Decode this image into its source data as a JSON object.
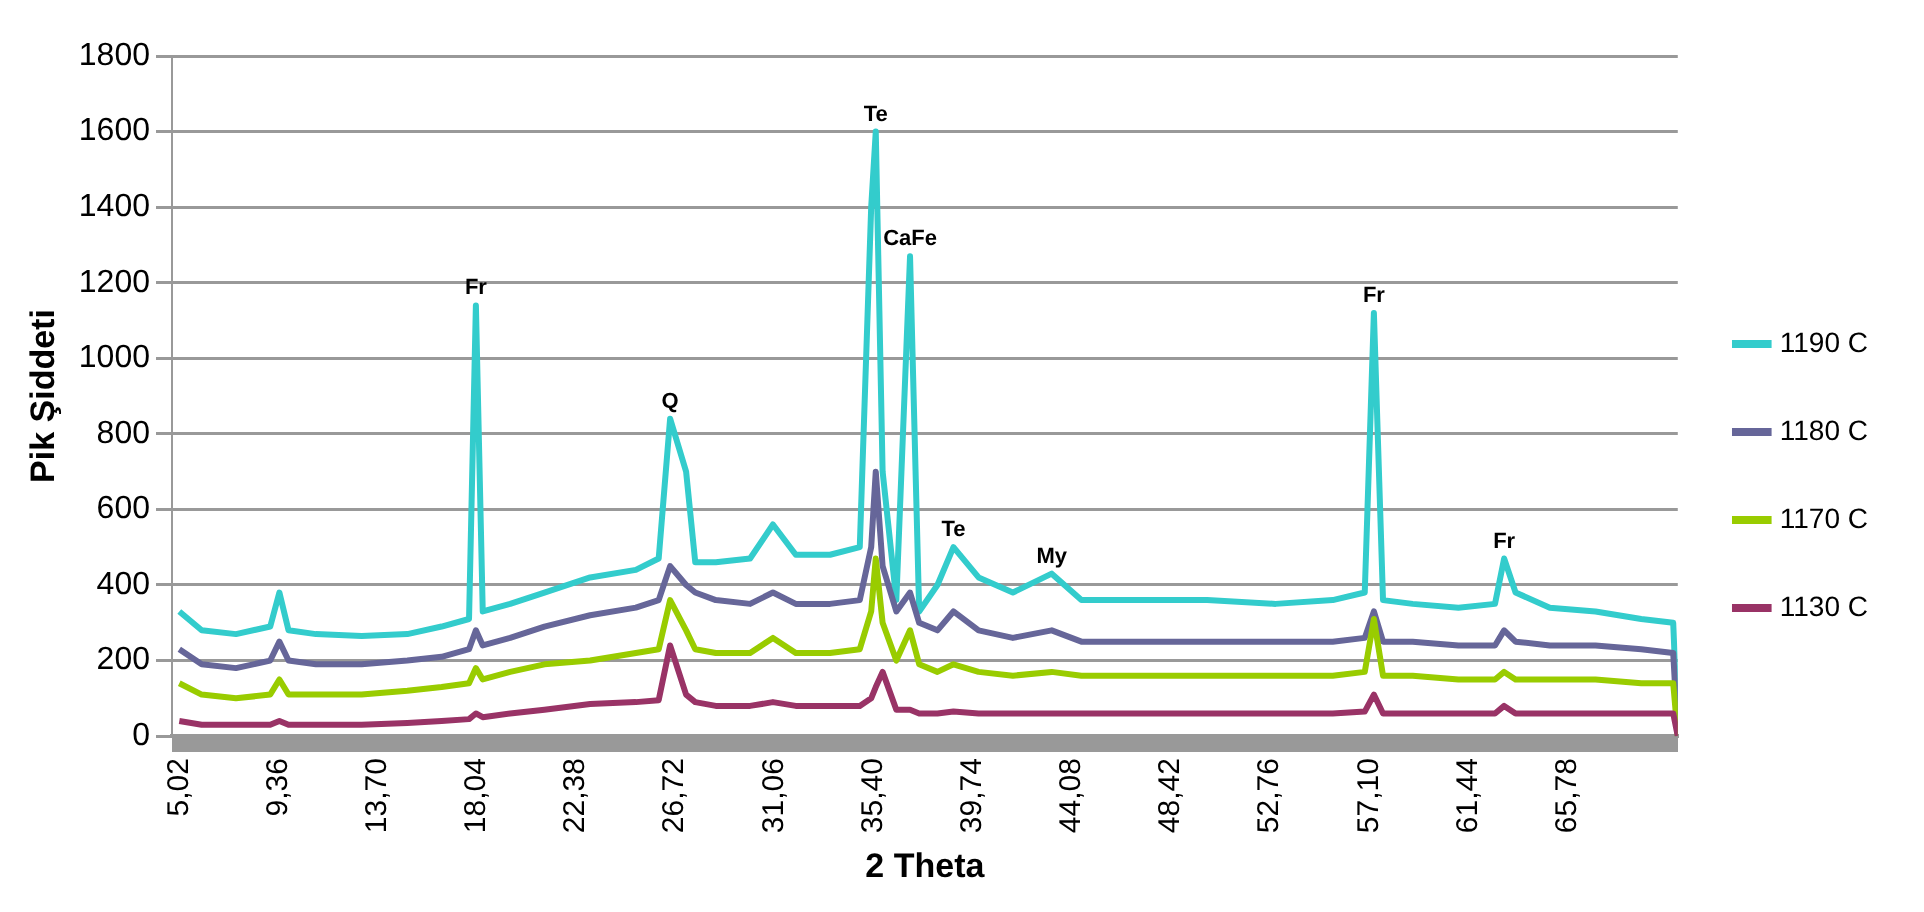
{
  "chart_data": {
    "type": "line",
    "xlabel": "2 Theta",
    "ylabel": "Pik Şiddeti",
    "x": [
      5.02,
      6,
      7.5,
      9,
      9.4,
      9.8,
      11,
      13,
      15,
      16.5,
      17.7,
      18.0,
      18.3,
      19.5,
      21,
      23,
      25,
      26,
      26.5,
      27.2,
      27.6,
      28.5,
      30,
      31,
      32,
      33.5,
      34.8,
      35.3,
      35.5,
      35.8,
      36.4,
      37.0,
      37.4,
      38.2,
      38.9,
      40,
      41.5,
      43.2,
      44.5,
      47,
      50,
      53,
      55.5,
      56.9,
      57.3,
      57.7,
      59,
      61,
      62.6,
      63.0,
      63.5,
      65,
      67,
      69,
      70.4,
      70.6
    ],
    "series": [
      {
        "name": "1190 C",
        "color": "#33cccc",
        "values": [
          330,
          280,
          270,
          290,
          380,
          280,
          270,
          265,
          270,
          290,
          310,
          1140,
          330,
          350,
          380,
          420,
          440,
          470,
          840,
          700,
          460,
          460,
          470,
          560,
          480,
          480,
          500,
          1400,
          1600,
          700,
          360,
          1270,
          330,
          400,
          500,
          420,
          380,
          430,
          360,
          360,
          360,
          350,
          360,
          380,
          1120,
          360,
          350,
          340,
          350,
          470,
          380,
          340,
          330,
          310,
          300,
          0
        ]
      },
      {
        "name": "1180 C",
        "color": "#666699",
        "values": [
          230,
          190,
          180,
          200,
          250,
          200,
          190,
          190,
          200,
          210,
          230,
          280,
          240,
          260,
          290,
          320,
          340,
          360,
          450,
          400,
          380,
          360,
          350,
          380,
          350,
          350,
          360,
          500,
          700,
          450,
          330,
          380,
          300,
          280,
          330,
          280,
          260,
          280,
          250,
          250,
          250,
          250,
          250,
          260,
          330,
          250,
          250,
          240,
          240,
          280,
          250,
          240,
          240,
          230,
          220,
          0
        ]
      },
      {
        "name": "1170 C",
        "color": "#99cc00",
        "values": [
          140,
          110,
          100,
          110,
          150,
          110,
          110,
          110,
          120,
          130,
          140,
          180,
          150,
          170,
          190,
          200,
          220,
          230,
          360,
          280,
          230,
          220,
          220,
          260,
          220,
          220,
          230,
          330,
          470,
          300,
          200,
          280,
          190,
          170,
          190,
          170,
          160,
          170,
          160,
          160,
          160,
          160,
          160,
          170,
          310,
          160,
          160,
          150,
          150,
          170,
          150,
          150,
          150,
          140,
          140,
          0
        ]
      },
      {
        "name": "1130 C",
        "color": "#993366",
        "values": [
          40,
          30,
          30,
          30,
          40,
          30,
          30,
          30,
          35,
          40,
          45,
          60,
          50,
          60,
          70,
          85,
          90,
          95,
          240,
          110,
          90,
          80,
          80,
          90,
          80,
          80,
          80,
          100,
          130,
          170,
          70,
          70,
          60,
          60,
          65,
          60,
          60,
          60,
          60,
          60,
          60,
          60,
          60,
          65,
          110,
          60,
          60,
          60,
          60,
          80,
          60,
          60,
          60,
          60,
          60,
          0
        ]
      }
    ],
    "xlim": [
      4.7,
      70.6
    ],
    "xticks": [
      {
        "value": 5.02,
        "label": "5,02"
      },
      {
        "value": 9.36,
        "label": "9,36"
      },
      {
        "value": 13.7,
        "label": "13,70"
      },
      {
        "value": 18.04,
        "label": "18,04"
      },
      {
        "value": 22.38,
        "label": "22,38"
      },
      {
        "value": 26.72,
        "label": "26,72"
      },
      {
        "value": 31.06,
        "label": "31,06"
      },
      {
        "value": 35.4,
        "label": "35,40"
      },
      {
        "value": 39.74,
        "label": "39,74"
      },
      {
        "value": 44.08,
        "label": "44,08"
      },
      {
        "value": 48.42,
        "label": "48,42"
      },
      {
        "value": 52.76,
        "label": "52,76"
      },
      {
        "value": 57.1,
        "label": "57,10"
      },
      {
        "value": 61.44,
        "label": "61,44"
      },
      {
        "value": 65.78,
        "label": "65,78"
      }
    ],
    "ylim": [
      0,
      1800
    ],
    "yticks": [
      0,
      200,
      400,
      600,
      800,
      1000,
      1200,
      1400,
      1600,
      1800
    ],
    "grid": "y",
    "legend": "right",
    "marker": "none",
    "line_style": "solid",
    "annotations": [
      {
        "text": "Fr",
        "x": 18.0,
        "y": 1140
      },
      {
        "text": "Q",
        "x": 26.5,
        "y": 840
      },
      {
        "text": "Te",
        "x": 35.5,
        "y": 1600
      },
      {
        "text": "CaFe",
        "x": 37.0,
        "y": 1270
      },
      {
        "text": "Te",
        "x": 38.9,
        "y": 500
      },
      {
        "text": "My",
        "x": 43.2,
        "y": 430
      },
      {
        "text": "Fr",
        "x": 57.3,
        "y": 1120
      },
      {
        "text": "Fr",
        "x": 63.0,
        "y": 470
      }
    ]
  }
}
